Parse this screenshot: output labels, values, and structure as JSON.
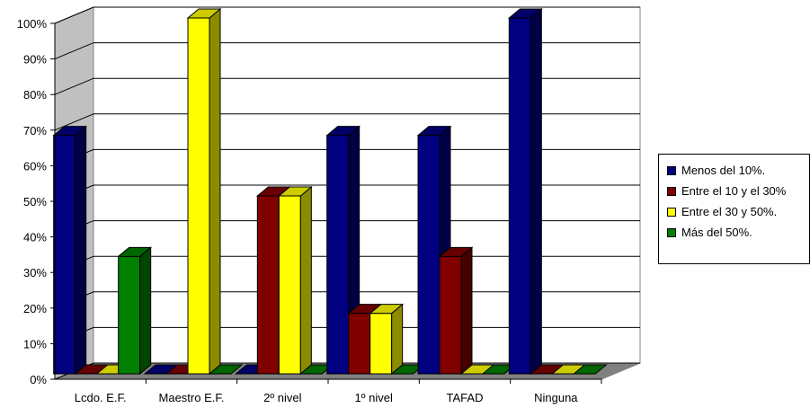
{
  "chart_data": {
    "type": "bar",
    "categories": [
      "Lcdo. E.F.",
      "Maestro E.F.",
      "2º nivel",
      "1º nivel",
      "TAFAD",
      "Ninguna"
    ],
    "series": [
      {
        "name": "Menos del 10%.",
        "color": "#000080",
        "values": [
          67,
          0,
          0,
          67,
          67,
          100
        ]
      },
      {
        "name": "Entre el 10 y el 30%",
        "color": "#800000",
        "values": [
          0,
          0,
          50,
          17,
          33,
          0
        ]
      },
      {
        "name": "Entre el 30 y 50%.",
        "color": "#FFFF00",
        "values": [
          0,
          100,
          50,
          17,
          0,
          0
        ]
      },
      {
        "name": "Más del 50%.",
        "color": "#008000",
        "values": [
          33,
          0,
          0,
          0,
          0,
          0
        ]
      }
    ],
    "y_tick_labels": [
      "0%",
      "10%",
      "20%",
      "30%",
      "40%",
      "50%",
      "60%",
      "70%",
      "80%",
      "90%",
      "100%"
    ],
    "ylim": [
      0,
      100
    ],
    "grid": true,
    "legend_position": "right",
    "bar_style": "3d"
  }
}
